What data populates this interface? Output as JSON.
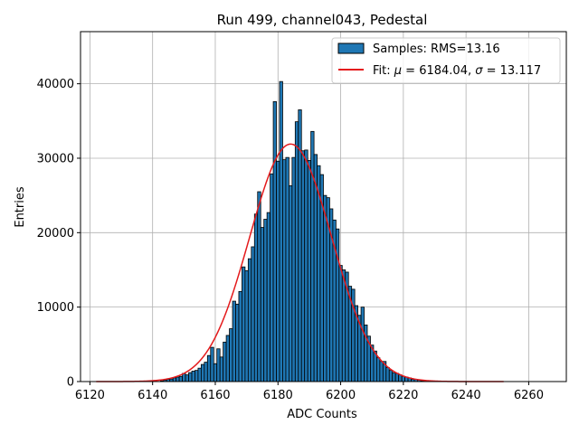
{
  "chart_data": {
    "type": "bar",
    "title": "Run 499, channel043, Pedestal",
    "xlabel": "ADC Counts",
    "ylabel": "Entries",
    "xlim": [
      6117,
      6272
    ],
    "ylim": [
      0,
      47000
    ],
    "xticks": [
      6120,
      6140,
      6160,
      6180,
      6200,
      6220,
      6240,
      6260
    ],
    "yticks": [
      0,
      10000,
      20000,
      30000,
      40000
    ],
    "grid": true,
    "legend_position": "top-right",
    "bin_width": 1,
    "bins": {
      "name": "Samples: RMS=13.16",
      "color": "#1f77b4",
      "edgecolor": "#000000",
      "x": [
        6143,
        6144,
        6145,
        6146,
        6147,
        6148,
        6149,
        6150,
        6151,
        6152,
        6153,
        6154,
        6155,
        6156,
        6157,
        6158,
        6159,
        6160,
        6161,
        6162,
        6163,
        6164,
        6165,
        6166,
        6167,
        6168,
        6169,
        6170,
        6171,
        6172,
        6173,
        6174,
        6175,
        6176,
        6177,
        6178,
        6179,
        6180,
        6181,
        6182,
        6183,
        6184,
        6185,
        6186,
        6187,
        6188,
        6189,
        6190,
        6191,
        6192,
        6193,
        6194,
        6195,
        6196,
        6197,
        6198,
        6199,
        6200,
        6201,
        6202,
        6203,
        6204,
        6205,
        6206,
        6207,
        6208,
        6209,
        6210,
        6211,
        6212,
        6213,
        6214,
        6215,
        6216,
        6217,
        6218,
        6219,
        6220,
        6221,
        6222,
        6223,
        6224,
        6225,
        6226,
        6227,
        6228,
        6229,
        6230
      ],
      "values": [
        100,
        200,
        300,
        350,
        500,
        600,
        700,
        1100,
        900,
        1200,
        1400,
        1500,
        1800,
        2300,
        2600,
        3500,
        4600,
        2400,
        4400,
        3300,
        5300,
        6200,
        7100,
        10800,
        10400,
        12100,
        15400,
        14900,
        16500,
        18100,
        22500,
        25500,
        20700,
        21800,
        22700,
        27900,
        37600,
        29600,
        40300,
        29800,
        30100,
        26300,
        30100,
        34900,
        36500,
        31000,
        31100,
        29700,
        33600,
        30500,
        29000,
        27800,
        25000,
        24700,
        23200,
        21700,
        20500,
        15600,
        15000,
        14700,
        12800,
        12400,
        10200,
        8900,
        10000,
        7600,
        6100,
        4900,
        4100,
        3200,
        2700,
        2700,
        1900,
        1500,
        1200,
        1100,
        900,
        700,
        600,
        500,
        300,
        300,
        200,
        100,
        100,
        50,
        50,
        30
      ]
    },
    "fit": {
      "name": "Fit: μ = 6184.04, σ = 13.117",
      "name_parts": [
        "Fit: ",
        "μ",
        " = 6184.04, ",
        "σ",
        " = 13.117"
      ],
      "color": "#e41a1c",
      "mean": 6184.04,
      "sigma": 13.117,
      "amplitude": 31900,
      "x_range": [
        6122,
        6252
      ]
    }
  }
}
